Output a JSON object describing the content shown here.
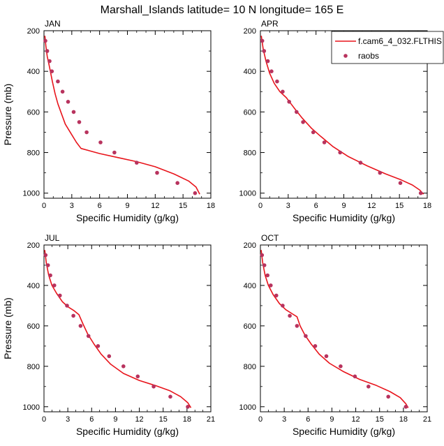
{
  "figure": {
    "title": "Marshall_Islands  latitude= 10 N longitude= 165 E"
  },
  "legend": {
    "model_label": "f.cam6_4_032.FLTHIS",
    "obs_label": "raobs",
    "model_color": "#e8141b",
    "obs_color": "#b8335e"
  },
  "chart_data": [
    {
      "type": "line",
      "panel": "JAN",
      "title": "JAN",
      "xlabel": "Specific Humidity (g/kg)",
      "ylabel": "Pressure (mb)",
      "xlim": [
        0,
        18
      ],
      "ylim": [
        200,
        1025
      ],
      "y_inverted": true,
      "xticks": [
        "0",
        "3",
        "6",
        "9",
        "12",
        "15",
        "18"
      ],
      "yticks": [
        "200",
        "400",
        "600",
        "800",
        "1000"
      ],
      "series": [
        {
          "name": "f.cam6_4_032.FLTHIS",
          "style": "line",
          "x": [
            0.1,
            0.2,
            0.35,
            0.6,
            0.9,
            1.2,
            1.5,
            1.9,
            2.3,
            2.9,
            3.5,
            4.0,
            6.0,
            8.0,
            10.0,
            12.0,
            14.0,
            15.6,
            16.4,
            16.8
          ],
          "y": [
            225,
            275,
            325,
            380,
            450,
            510,
            560,
            610,
            660,
            705,
            750,
            780,
            805,
            825,
            845,
            870,
            905,
            940,
            970,
            1005
          ]
        },
        {
          "name": "raobs",
          "style": "markers",
          "x": [
            0.15,
            0.35,
            0.6,
            0.85,
            1.5,
            2.0,
            2.6,
            3.2,
            3.8,
            4.6,
            6.1,
            7.6,
            10.0,
            12.2,
            14.4,
            16.3
          ],
          "y": [
            250,
            300,
            350,
            400,
            450,
            500,
            550,
            600,
            650,
            700,
            750,
            800,
            850,
            900,
            950,
            1000
          ]
        }
      ]
    },
    {
      "type": "line",
      "panel": "APR",
      "title": "APR",
      "xlabel": "Specific Humidity (g/kg)",
      "ylabel": "",
      "xlim": [
        0,
        18
      ],
      "ylim": [
        200,
        1025
      ],
      "y_inverted": true,
      "xticks": [
        "0",
        "3",
        "6",
        "9",
        "12",
        "15",
        "18"
      ],
      "yticks": [
        "200",
        "400",
        "600",
        "800",
        "1000"
      ],
      "series": [
        {
          "name": "f.cam6_4_032.FLTHIS",
          "style": "line",
          "x": [
            0.1,
            0.3,
            0.6,
            1.0,
            1.5,
            2.1,
            2.8,
            3.3,
            3.8,
            4.5,
            5.5,
            6.5,
            7.8,
            9.5,
            11.5,
            13.5,
            15.2,
            16.4,
            17.2,
            17.6
          ],
          "y": [
            225,
            290,
            350,
            410,
            460,
            500,
            530,
            560,
            590,
            630,
            680,
            720,
            770,
            820,
            865,
            905,
            935,
            960,
            985,
            1005
          ]
        },
        {
          "name": "raobs",
          "style": "markers",
          "x": [
            0.2,
            0.4,
            0.8,
            1.2,
            1.8,
            2.4,
            3.1,
            3.9,
            4.6,
            5.7,
            6.9,
            8.6,
            10.8,
            12.9,
            15.1,
            17.3
          ],
          "y": [
            250,
            300,
            350,
            400,
            450,
            500,
            550,
            600,
            650,
            700,
            750,
            800,
            850,
            900,
            950,
            1000
          ]
        }
      ]
    },
    {
      "type": "line",
      "panel": "JUL",
      "title": "JUL",
      "xlabel": "Specific Humidity (g/kg)",
      "ylabel": "Pressure (mb)",
      "xlim": [
        0,
        21
      ],
      "ylim": [
        200,
        1025
      ],
      "y_inverted": true,
      "xticks": [
        "0",
        "3",
        "6",
        "9",
        "12",
        "15",
        "18",
        "21"
      ],
      "yticks": [
        "200",
        "400",
        "600",
        "800",
        "1000"
      ],
      "series": [
        {
          "name": "f.cam6_4_032.FLTHIS",
          "style": "line",
          "x": [
            0.1,
            0.3,
            0.6,
            1.0,
            1.6,
            2.3,
            3.0,
            3.8,
            4.4,
            4.9,
            5.5,
            6.3,
            7.2,
            8.4,
            10.0,
            12.0,
            14.0,
            15.8,
            17.2,
            18.1,
            18.5
          ],
          "y": [
            225,
            290,
            350,
            400,
            440,
            480,
            505,
            525,
            545,
            590,
            640,
            690,
            740,
            790,
            835,
            870,
            895,
            920,
            950,
            980,
            1005
          ]
        },
        {
          "name": "raobs",
          "style": "markers",
          "x": [
            0.2,
            0.5,
            0.8,
            1.3,
            2.0,
            2.9,
            3.7,
            4.6,
            5.6,
            6.8,
            8.2,
            10.0,
            11.8,
            13.8,
            15.9,
            18.1
          ],
          "y": [
            250,
            300,
            350,
            400,
            450,
            500,
            550,
            600,
            650,
            700,
            750,
            800,
            850,
            900,
            950,
            1000
          ]
        }
      ]
    },
    {
      "type": "line",
      "panel": "OCT",
      "title": "OCT",
      "xlabel": "Specific Humidity (g/kg)",
      "ylabel": "",
      "xlim": [
        0,
        21
      ],
      "ylim": [
        200,
        1025
      ],
      "y_inverted": true,
      "xticks": [
        "0",
        "3",
        "6",
        "9",
        "12",
        "15",
        "18",
        "21"
      ],
      "yticks": [
        "200",
        "400",
        "600",
        "800",
        "1000"
      ],
      "series": [
        {
          "name": "f.cam6_4_032.FLTHIS",
          "style": "line",
          "x": [
            0.1,
            0.3,
            0.6,
            1.0,
            1.6,
            2.4,
            3.2,
            4.0,
            4.6,
            5.0,
            5.6,
            6.4,
            7.4,
            8.7,
            10.4,
            12.5,
            14.6,
            16.3,
            17.6,
            18.3,
            18.6
          ],
          "y": [
            225,
            290,
            350,
            400,
            445,
            490,
            520,
            540,
            555,
            600,
            645,
            690,
            740,
            785,
            825,
            865,
            895,
            925,
            955,
            985,
            1005
          ]
        },
        {
          "name": "raobs",
          "style": "markers",
          "x": [
            0.2,
            0.5,
            0.9,
            1.3,
            2.0,
            2.8,
            3.7,
            4.6,
            5.7,
            6.9,
            8.3,
            10.1,
            11.9,
            13.6,
            16.1,
            18.3
          ],
          "y": [
            250,
            300,
            350,
            400,
            450,
            500,
            550,
            600,
            650,
            700,
            750,
            800,
            850,
            900,
            950,
            1000
          ]
        }
      ]
    }
  ]
}
